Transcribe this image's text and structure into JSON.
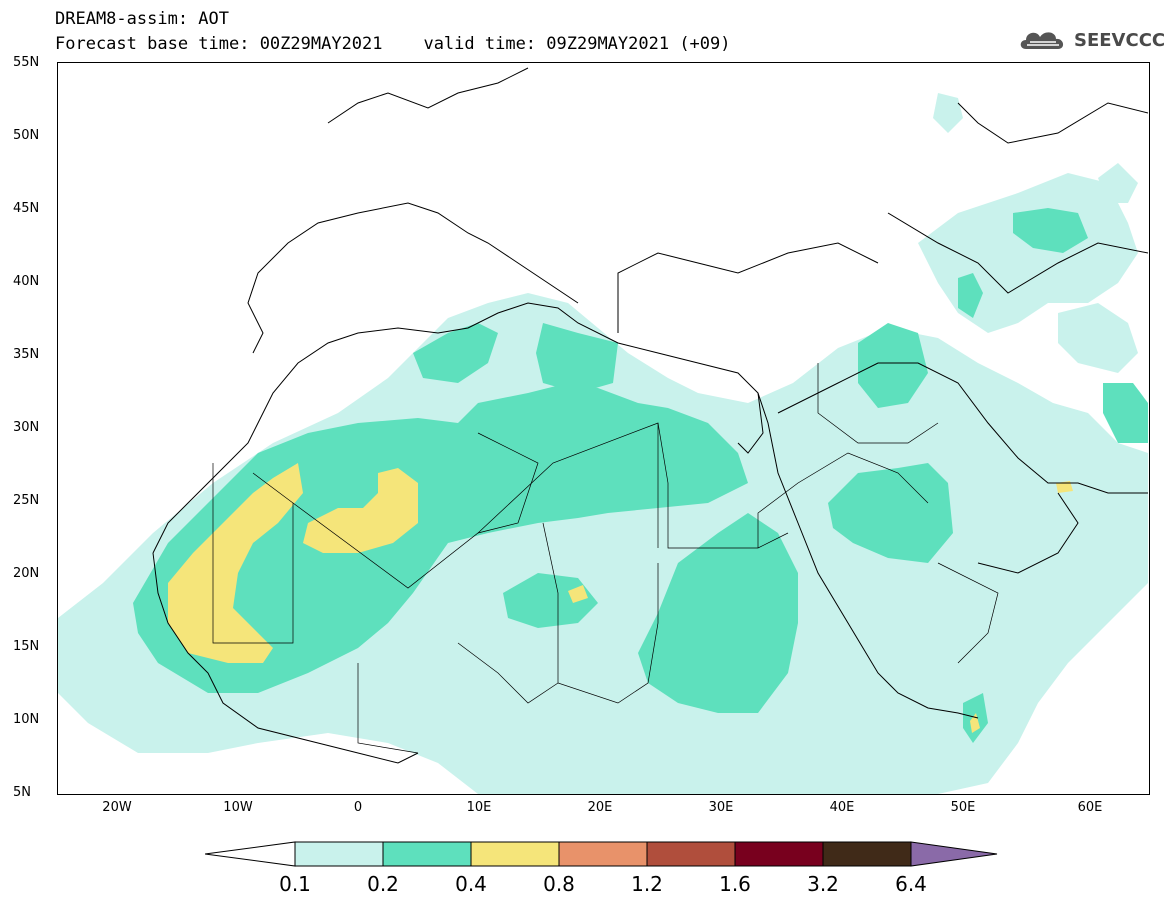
{
  "header": {
    "line1": "DREAM8-assim: AOT",
    "line2": "Forecast base time: 00Z29MAY2021    valid time: 09Z29MAY2021 (+09)"
  },
  "logo": {
    "text": "SEEVCCC",
    "icon": "cloud-icon"
  },
  "axes": {
    "lat_labels": [
      "55N",
      "50N",
      "45N",
      "40N",
      "35N",
      "30N",
      "25N",
      "20N",
      "15N",
      "10N",
      "5N"
    ],
    "lon_labels": [
      "20W",
      "10W",
      "0",
      "10E",
      "20E",
      "30E",
      "40E",
      "50E",
      "60E"
    ],
    "lon_range": [
      -25,
      65
    ],
    "lat_range": [
      5,
      55
    ]
  },
  "colorbar": {
    "labels": [
      "0.1",
      "0.2",
      "0.4",
      "0.8",
      "1.2",
      "1.6",
      "3.2",
      "6.4"
    ],
    "colors": [
      "#ffffff",
      "#c9f2ec",
      "#5ee0bd",
      "#f5e57a",
      "#e8926a",
      "#b04e3c",
      "#78001e",
      "#402a18",
      "#8a6aa8"
    ]
  }
}
